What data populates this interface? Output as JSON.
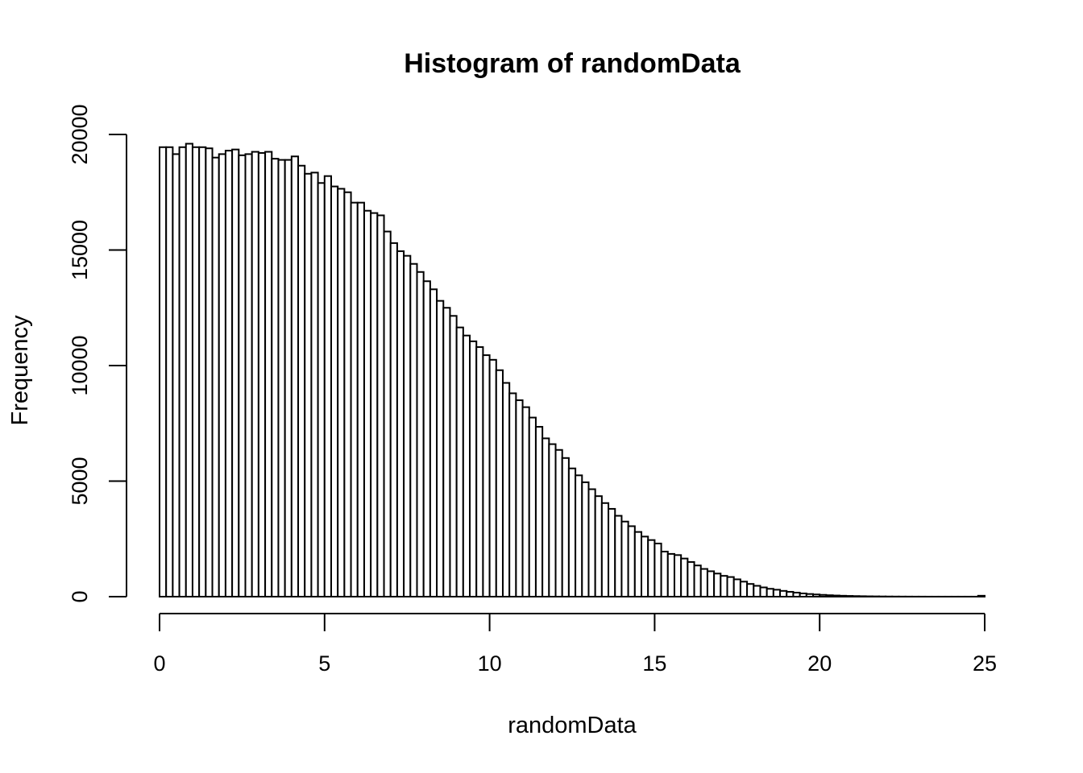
{
  "chart_data": {
    "type": "bar",
    "title": "Histogram of randomData",
    "xlabel": "randomData",
    "ylabel": "Frequency",
    "xlim": [
      0,
      25
    ],
    "ylim": [
      0,
      20000
    ],
    "x_ticks": [
      0,
      5,
      10,
      15,
      20,
      25
    ],
    "y_ticks": [
      0,
      5000,
      10000,
      15000,
      20000
    ],
    "bin_width": 0.2,
    "bin_start": 0,
    "values": [
      19450,
      19450,
      19150,
      19450,
      19600,
      19450,
      19450,
      19400,
      19000,
      19150,
      19300,
      19350,
      19100,
      19150,
      19250,
      19200,
      19250,
      18950,
      18900,
      18900,
      19050,
      18650,
      18300,
      18350,
      17900,
      18200,
      17750,
      17650,
      17500,
      17050,
      17050,
      16700,
      16600,
      16500,
      15800,
      15300,
      14950,
      14750,
      14400,
      14050,
      13650,
      13300,
      12800,
      12500,
      12150,
      11650,
      11300,
      11050,
      10800,
      10450,
      10250,
      9800,
      9250,
      8800,
      8500,
      8200,
      7750,
      7350,
      6850,
      6600,
      6350,
      6000,
      5550,
      5250,
      4950,
      4650,
      4350,
      4050,
      3800,
      3500,
      3250,
      3050,
      2800,
      2600,
      2450,
      2300,
      1950,
      1850,
      1800,
      1650,
      1500,
      1350,
      1200,
      1100,
      1000,
      900,
      850,
      750,
      650,
      550,
      470,
      400,
      340,
      300,
      250,
      210,
      175,
      140,
      115,
      95,
      78,
      62,
      50,
      40,
      32,
      25,
      20,
      15,
      12,
      9,
      7,
      5,
      4,
      3,
      2,
      2,
      1,
      1,
      1,
      1,
      1,
      1,
      1,
      1,
      40
    ]
  }
}
